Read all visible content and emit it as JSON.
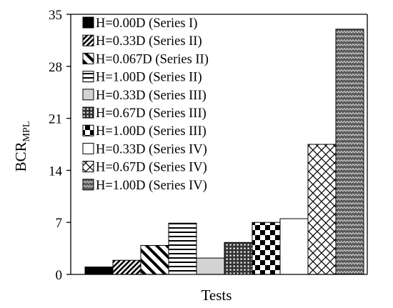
{
  "chart_data": {
    "type": "bar",
    "xlabel": "Tests",
    "ylabel_main": "BCR",
    "ylabel_sub": "MPL",
    "ylim": [
      0,
      35
    ],
    "yticks": [
      "0",
      "7",
      "14",
      "21",
      "28",
      "35"
    ],
    "grid": false,
    "legend_position": "top-left",
    "categories": [
      "H=0.00D (Series I)",
      "H=0.33D (Series II)",
      "H=0.067D (Series II)",
      "H=1.00D (Series II)",
      "H=0.33D (Series III)",
      "H=0.67D (Series III)",
      "H=1.00D (Series III)",
      "H=0.33D (Series IV)",
      "H=0.67D (Series IV)",
      "H=1.00D (Series IV)"
    ],
    "values": [
      1.0,
      1.9,
      3.9,
      6.9,
      2.2,
      4.3,
      7.0,
      7.5,
      17.5,
      33.0
    ],
    "patterns": [
      "solid-black",
      "diag-dense",
      "diag-wide",
      "horizontal",
      "solid-gray",
      "grid",
      "checker",
      "white",
      "diamond",
      "wave"
    ]
  }
}
